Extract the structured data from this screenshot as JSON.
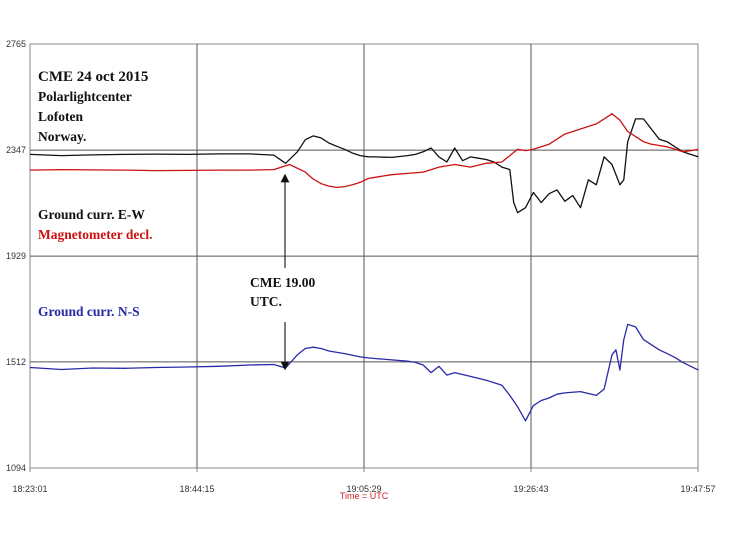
{
  "chart_data": {
    "type": "line",
    "title": "",
    "xlabel": "Time = UTC",
    "ylabel": "",
    "x_ticks": [
      "18:23:01",
      "18:44:15",
      "19:05:29",
      "19:26:43",
      "19:47:57"
    ],
    "x_tick_minutes": [
      0,
      21.2333,
      42.4667,
      63.7,
      84.9333
    ],
    "xlim_minutes": [
      0,
      84.9333
    ],
    "y_ticks": [
      2765,
      2347,
      1929,
      1512,
      1094
    ],
    "ylim": [
      1094,
      2765
    ],
    "grid": true,
    "colors": {
      "black": "#111111",
      "red": "#cc1111",
      "blue": "#2a2aa8",
      "grid": "#555555",
      "frame": "#888888"
    },
    "annotations": {
      "header": [
        "CME  24 oct 2015",
        "Polarlightcenter",
        "Lofoten",
        "Norway."
      ],
      "ground_ew": "Ground curr. E-W",
      "magnetometer": "Magnetometer decl.",
      "ground_ns": "Ground curr. N-S",
      "cme_marker": [
        "CME 19.00",
        "UTC."
      ]
    },
    "series": [
      {
        "name": "Ground curr. E-W",
        "color": "#111111",
        "x": [
          0,
          4,
          8,
          12,
          16,
          20,
          24,
          28,
          31,
          32.5,
          34,
          35,
          36,
          37,
          38,
          39,
          40,
          41,
          42,
          43,
          44,
          46,
          48,
          49,
          50,
          51,
          52,
          53,
          54,
          55,
          56,
          57,
          58,
          59,
          60,
          61,
          61.5,
          62,
          63,
          64,
          65,
          66,
          67,
          68,
          69,
          70,
          71,
          72,
          73,
          74,
          75,
          75.5,
          76,
          77,
          78,
          79,
          80,
          81,
          82,
          83,
          84,
          85
        ],
        "y": [
          2330,
          2325,
          2328,
          2330,
          2331,
          2330,
          2332,
          2332,
          2327,
          2295,
          2340,
          2388,
          2403,
          2395,
          2375,
          2362,
          2350,
          2335,
          2325,
          2320,
          2320,
          2318,
          2325,
          2330,
          2340,
          2355,
          2320,
          2300,
          2355,
          2305,
          2320,
          2315,
          2310,
          2300,
          2280,
          2270,
          2140,
          2100,
          2120,
          2180,
          2140,
          2175,
          2190,
          2145,
          2168,
          2120,
          2230,
          2210,
          2320,
          2290,
          2210,
          2230,
          2380,
          2470,
          2470,
          2430,
          2390,
          2380,
          2360,
          2340,
          2330,
          2320
        ]
      },
      {
        "name": "Magnetometer decl.",
        "color": "#cc1111",
        "x": [
          0,
          4,
          8,
          12,
          16,
          20,
          24,
          28,
          31,
          33,
          35,
          36,
          37,
          38,
          39,
          40,
          41,
          42,
          43,
          44,
          45,
          46,
          48,
          50,
          52,
          54,
          56,
          58,
          60,
          62,
          63,
          64,
          66,
          68,
          70,
          72,
          73,
          74,
          75,
          76,
          77,
          78,
          79,
          80,
          81,
          82,
          83,
          84,
          85
        ],
        "y": [
          2268,
          2270,
          2269,
          2268,
          2266,
          2267,
          2268,
          2268,
          2270,
          2290,
          2260,
          2233,
          2215,
          2205,
          2200,
          2203,
          2210,
          2220,
          2235,
          2240,
          2245,
          2250,
          2255,
          2260,
          2280,
          2290,
          2280,
          2295,
          2300,
          2350,
          2345,
          2350,
          2370,
          2410,
          2430,
          2450,
          2470,
          2490,
          2465,
          2420,
          2400,
          2380,
          2370,
          2365,
          2360,
          2350,
          2340,
          2345,
          2350
        ]
      },
      {
        "name": "Ground curr. N-S",
        "color": "#2a2aa8",
        "x": [
          0,
          4,
          8,
          12,
          16,
          20,
          24,
          28,
          31,
          32.5,
          34,
          35,
          36,
          37,
          38,
          40,
          42,
          43,
          44,
          46,
          48,
          49,
          50,
          51,
          52,
          53,
          54,
          56,
          58,
          60,
          61,
          62,
          63,
          64,
          65,
          66,
          67,
          68,
          70,
          72,
          73,
          74,
          74.5,
          75,
          75.5,
          76,
          77,
          78,
          79,
          80,
          81,
          82,
          83,
          84,
          85
        ],
        "y": [
          1490,
          1482,
          1488,
          1487,
          1490,
          1492,
          1495,
          1500,
          1502,
          1488,
          1540,
          1565,
          1570,
          1565,
          1555,
          1545,
          1532,
          1528,
          1525,
          1520,
          1515,
          1510,
          1500,
          1470,
          1495,
          1460,
          1470,
          1455,
          1440,
          1420,
          1380,
          1335,
          1280,
          1340,
          1360,
          1370,
          1385,
          1390,
          1395,
          1380,
          1405,
          1540,
          1560,
          1480,
          1600,
          1660,
          1650,
          1600,
          1580,
          1560,
          1545,
          1530,
          1510,
          1495,
          1480
        ]
      }
    ]
  }
}
